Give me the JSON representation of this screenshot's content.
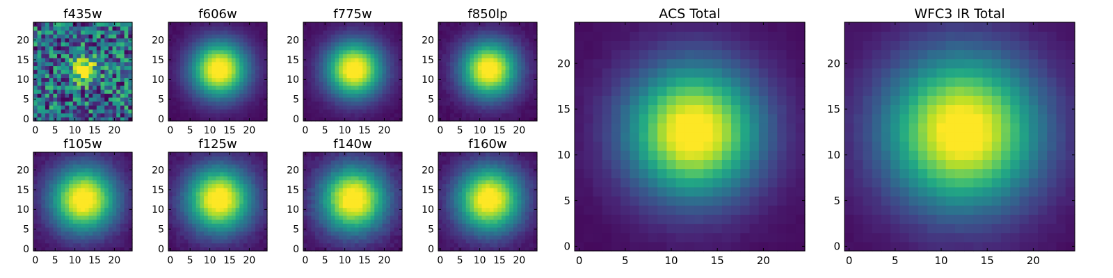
{
  "chart_data": [
    {
      "type": "heatmap",
      "title": "f435w",
      "extent": [
        0,
        24,
        0,
        24
      ],
      "cmap": "viridis",
      "center": [
        12.3,
        12.6
      ],
      "sigma": 2.3,
      "noise": 0.45,
      "xticks": [
        "0",
        "5",
        "10",
        "15",
        "20"
      ],
      "yticks": [
        "0",
        "5",
        "10",
        "15",
        "20"
      ]
    },
    {
      "type": "heatmap",
      "title": "f606w",
      "extent": [
        0,
        24,
        0,
        24
      ],
      "cmap": "viridis",
      "center": [
        12.4,
        12.6
      ],
      "sigma": 5.0,
      "noise": 0.03,
      "xticks": [
        "0",
        "5",
        "10",
        "15",
        "20"
      ],
      "yticks": [
        "0",
        "5",
        "10",
        "15",
        "20"
      ]
    },
    {
      "type": "heatmap",
      "title": "f775w",
      "extent": [
        0,
        24,
        0,
        24
      ],
      "cmap": "viridis",
      "center": [
        12.4,
        12.6
      ],
      "sigma": 5.0,
      "noise": 0.03,
      "xticks": [
        "0",
        "5",
        "10",
        "15",
        "20"
      ],
      "yticks": [
        "0",
        "5",
        "10",
        "15",
        "20"
      ]
    },
    {
      "type": "heatmap",
      "title": "f850lp",
      "extent": [
        0,
        24,
        0,
        24
      ],
      "cmap": "viridis",
      "center": [
        12.4,
        12.6
      ],
      "sigma": 5.0,
      "noise": 0.04,
      "xticks": [
        "0",
        "5",
        "10",
        "15",
        "20"
      ],
      "yticks": [
        "0",
        "5",
        "10",
        "15",
        "20"
      ]
    },
    {
      "type": "heatmap",
      "title": "f105w",
      "extent": [
        0,
        24,
        0,
        24
      ],
      "cmap": "viridis",
      "center": [
        12.2,
        12.6
      ],
      "sigma": 5.8,
      "noise": 0.05,
      "xticks": [
        "0",
        "5",
        "10",
        "15",
        "20"
      ],
      "yticks": [
        "0",
        "5",
        "10",
        "15",
        "20"
      ]
    },
    {
      "type": "heatmap",
      "title": "f125w",
      "extent": [
        0,
        24,
        0,
        24
      ],
      "cmap": "viridis",
      "center": [
        12.3,
        12.6
      ],
      "sigma": 5.8,
      "noise": 0.05,
      "xticks": [
        "0",
        "5",
        "10",
        "15",
        "20"
      ],
      "yticks": [
        "0",
        "5",
        "10",
        "15",
        "20"
      ]
    },
    {
      "type": "heatmap",
      "title": "f140w",
      "extent": [
        0,
        24,
        0,
        24
      ],
      "cmap": "viridis",
      "center": [
        12.2,
        12.6
      ],
      "sigma": 5.9,
      "noise": 0.06,
      "xticks": [
        "0",
        "5",
        "10",
        "15",
        "20"
      ],
      "yticks": [
        "0",
        "5",
        "10",
        "15",
        "20"
      ]
    },
    {
      "type": "heatmap",
      "title": "f160w",
      "extent": [
        0,
        24,
        0,
        24
      ],
      "cmap": "viridis",
      "center": [
        12.4,
        12.6
      ],
      "sigma": 5.8,
      "noise": 0.05,
      "xticks": [
        "0",
        "5",
        "10",
        "15",
        "20"
      ],
      "yticks": [
        "0",
        "5",
        "10",
        "15",
        "20"
      ]
    },
    {
      "type": "heatmap",
      "title": "ACS Total",
      "extent": [
        0,
        24,
        0,
        24
      ],
      "cmap": "viridis",
      "center": [
        12.4,
        12.6
      ],
      "sigma": 5.0,
      "noise": 0.02,
      "xticks": [
        "0",
        "5",
        "10",
        "15",
        "20"
      ],
      "yticks": [
        "0",
        "5",
        "10",
        "15",
        "20"
      ]
    },
    {
      "type": "heatmap",
      "title": "WFC3 IR Total",
      "extent": [
        0,
        24,
        0,
        24
      ],
      "cmap": "viridis",
      "center": [
        12.3,
        12.6
      ],
      "sigma": 5.8,
      "noise": 0.02,
      "xticks": [
        "0",
        "5",
        "10",
        "15",
        "20"
      ],
      "yticks": [
        "0",
        "5",
        "10",
        "15",
        "20"
      ]
    }
  ]
}
